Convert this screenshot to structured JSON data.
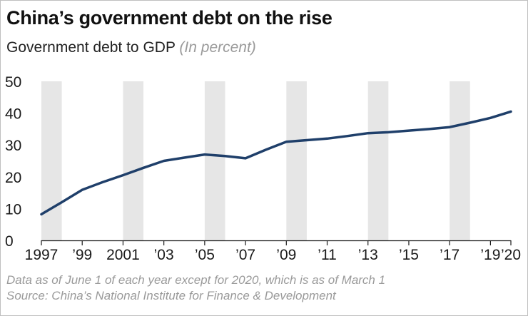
{
  "header": {
    "title": "China’s government debt on the rise",
    "subtitle": "Government debt to GDP",
    "unit": "(In percent)"
  },
  "chart_data": {
    "type": "line",
    "title": "China’s government debt on the rise",
    "subtitle": "Government debt to GDP (In percent)",
    "xlabel": "",
    "ylabel": "Government debt to GDP (In percent)",
    "x": [
      1997,
      1998,
      1999,
      2000,
      2001,
      2002,
      2003,
      2004,
      2005,
      2006,
      2007,
      2008,
      2009,
      2010,
      2011,
      2012,
      2013,
      2014,
      2015,
      2016,
      2017,
      2018,
      2019,
      2020
    ],
    "series": [
      {
        "name": "Government debt to GDP",
        "color": "#1f3f6a",
        "values": [
          8.2,
          12.0,
          15.9,
          18.3,
          20.5,
          22.8,
          25.0,
          26.0,
          27.0,
          26.5,
          25.8,
          28.5,
          31.0,
          31.5,
          32.0,
          32.8,
          33.7,
          34.0,
          34.5,
          35.0,
          35.6,
          37.0,
          38.5,
          40.5
        ]
      }
    ],
    "x_tick_values": [
      1997,
      1999,
      2001,
      2003,
      2005,
      2007,
      2009,
      2011,
      2013,
      2015,
      2017,
      2019,
      2020
    ],
    "x_tick_labels": [
      "1997",
      "’99",
      "2001",
      "’03",
      "’05",
      "’07",
      "’09",
      "’11",
      "’13",
      "’15",
      "’17",
      "’19",
      "’20"
    ],
    "y_ticks": [
      0,
      10,
      20,
      30,
      40,
      50
    ],
    "xlim": [
      1997,
      2020
    ],
    "ylim": [
      0,
      50
    ],
    "shaded_bands": [
      [
        1997,
        1998
      ],
      [
        2001,
        2002
      ],
      [
        2005,
        2006
      ],
      [
        2009,
        2010
      ],
      [
        2013,
        2014
      ],
      [
        2017,
        2018
      ]
    ],
    "band_color": "#e6e6e6",
    "grid": false
  },
  "footer": {
    "note": "Data as of June 1 of each year except for 2020, which is as of March 1",
    "source": "Source: China’s National Institute for Finance & Development"
  }
}
